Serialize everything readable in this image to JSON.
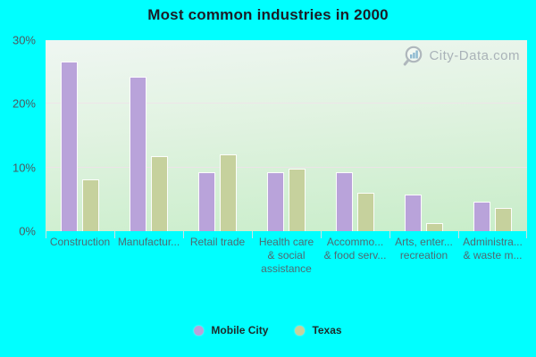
{
  "title": "Most common industries in 2000",
  "watermark": {
    "label": "City-Data.com",
    "icon": "magnifier-bars-icon"
  },
  "colors": {
    "background": "#00ffff",
    "plot_gradient_top": "#eff6f2",
    "plot_gradient_bottom": "#c8edc9",
    "gridline": "#f0e2ea",
    "mobile_city": "#b9a3da",
    "texas": "#c6d19d",
    "y_label_text": "#4c5a60",
    "x_label_text": "#4e6a72",
    "title_text": "#1c1c26",
    "watermark_text": "#a3abb3",
    "legend_text": "#1d2b2b"
  },
  "chart_data": {
    "type": "bar",
    "title": "Most common industries in 2000",
    "categories": [
      "Construction",
      "Manufactur...",
      "Retail trade",
      "Health care\n& social\nassistance",
      "Accommo...\n& food serv...",
      "Arts, enter...\nrecreation",
      "Administra...\n& waste m..."
    ],
    "series": [
      {
        "name": "Mobile City",
        "color": "#b9a3da",
        "values": [
          26.7,
          24.3,
          9.3,
          9.3,
          9.3,
          5.7,
          4.6
        ]
      },
      {
        "name": "Texas",
        "color": "#c6d19d",
        "values": [
          8.1,
          11.8,
          12.0,
          9.8,
          6.0,
          1.3,
          3.6
        ]
      }
    ],
    "xlabel": "",
    "ylabel": "",
    "ylim": [
      0,
      30
    ],
    "yticks": [
      {
        "value": 0,
        "label": "0%"
      },
      {
        "value": 10,
        "label": "10%"
      },
      {
        "value": 20,
        "label": "20%"
      },
      {
        "value": 30,
        "label": "30%"
      }
    ],
    "gridlines": [
      10,
      20
    ],
    "grid": "horizontal",
    "legend_position": "bottom-center"
  }
}
